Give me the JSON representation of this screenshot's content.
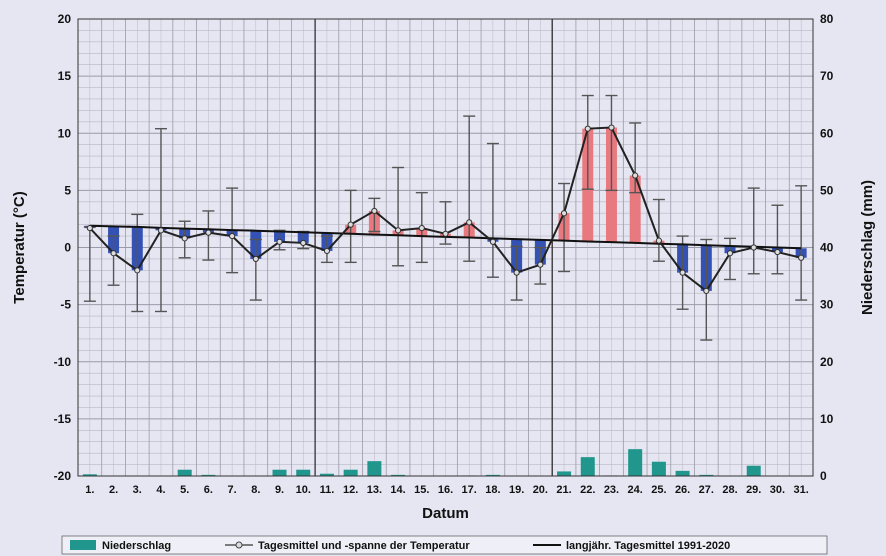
{
  "chart_data": {
    "type": "bar",
    "title": "",
    "xlabel": "Datum",
    "ylabel": "Temperatur (°C)",
    "y2label": "Niederschlag (mm)",
    "ylim": [
      -20,
      20
    ],
    "y2lim": [
      0,
      80
    ],
    "yticks": [
      20,
      15,
      10,
      5,
      0,
      -5,
      -10,
      -15,
      -20
    ],
    "y2ticks": [
      80,
      70,
      60,
      50,
      40,
      30,
      20,
      10,
      0
    ],
    "categories": [
      "1.",
      "2.",
      "3.",
      "4.",
      "5.",
      "6.",
      "7.",
      "8.",
      "9.",
      "10.",
      "11.",
      "12.",
      "13.",
      "14.",
      "15.",
      "16.",
      "17.",
      "18.",
      "19.",
      "20.",
      "21.",
      "22.",
      "23.",
      "24.",
      "25.",
      "26.",
      "27.",
      "28.",
      "29.",
      "30.",
      "31."
    ],
    "grid": true,
    "legend_position": "bottom",
    "series": [
      {
        "name": "Niederschlag",
        "axis": "right",
        "values": [
          0.3,
          0,
          0,
          0,
          1.1,
          0.2,
          0,
          0,
          1.1,
          1.1,
          0.4,
          1.1,
          2.6,
          0.2,
          0,
          0,
          0.1,
          0.2,
          0,
          0,
          0.8,
          3.3,
          0.1,
          4.7,
          2.5,
          0.9,
          0.2,
          0,
          1.8,
          0,
          0
        ],
        "color": "#21968c"
      },
      {
        "name": "Tagesmittel und -spanne der Temperatur",
        "axis": "left",
        "mean": [
          1.7,
          -0.5,
          -2.0,
          1.5,
          0.8,
          1.3,
          1.0,
          -1.0,
          0.5,
          0.4,
          -0.3,
          2.0,
          3.2,
          1.5,
          1.7,
          1.2,
          2.2,
          0.5,
          -2.2,
          -1.5,
          3.0,
          10.4,
          10.5,
          6.3,
          0.6,
          -2.2,
          -3.8,
          -0.5,
          0.0,
          -0.4,
          -0.9
        ],
        "max": [
          1.8,
          1.0,
          2.9,
          10.4,
          2.3,
          3.2,
          5.2,
          0.7,
          1.5,
          1.4,
          1.0,
          5.0,
          4.3,
          7.0,
          4.8,
          4.0,
          11.5,
          9.1,
          0.1,
          0.0,
          5.6,
          13.3,
          13.3,
          10.9,
          4.2,
          1.0,
          0.7,
          0.8,
          5.2,
          3.7,
          5.4
        ],
        "min": [
          -4.7,
          -3.3,
          -5.6,
          -5.6,
          -0.9,
          -1.1,
          -2.2,
          -4.6,
          -0.2,
          -0.1,
          -1.3,
          -1.3,
          1.4,
          -1.6,
          -1.3,
          0.3,
          -1.2,
          -2.6,
          -4.6,
          -3.2,
          -2.1,
          5.1,
          5.0,
          4.8,
          -1.2,
          -5.4,
          -8.1,
          -2.8,
          -2.3,
          -2.3,
          -4.6
        ],
        "color": "#555555"
      },
      {
        "name": "langjähr. Tagesmittel 1991-2020",
        "axis": "left",
        "values": [
          1.9,
          1.85,
          1.8,
          1.72,
          1.65,
          1.6,
          1.52,
          1.47,
          1.4,
          1.33,
          1.27,
          1.2,
          1.13,
          1.07,
          1.0,
          0.93,
          0.87,
          0.8,
          0.73,
          0.67,
          0.6,
          0.53,
          0.47,
          0.4,
          0.33,
          0.27,
          0.2,
          0.13,
          0.07,
          0.0,
          -0.07
        ],
        "color": "#111111"
      }
    ],
    "legend": [
      "Niederschlag",
      "Tagesmittel und -spanne der Temperatur",
      "langjähr. Tagesmittel 1991-2020"
    ],
    "colors": {
      "warm_anomaly": "#e87a7f",
      "cold_anomaly": "#3452b4",
      "background": "#e6e6f3",
      "grid": "#b8b8c4"
    }
  }
}
